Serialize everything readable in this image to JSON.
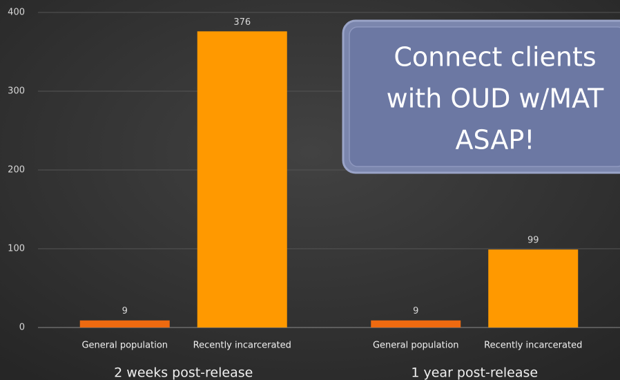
{
  "chart_data": {
    "type": "bar",
    "categories": [
      "2 weeks post-release",
      "1 year post-release"
    ],
    "series": [
      {
        "name": "General population",
        "color": "#ee6a10",
        "values": [
          9,
          9
        ]
      },
      {
        "name": "Recently incarcerated",
        "color": "#ff9900",
        "values": [
          376,
          99
        ]
      }
    ],
    "ylim": [
      0,
      400
    ],
    "yticks": [
      0,
      100,
      200,
      300,
      400
    ],
    "grid": true,
    "annotation": [
      "Connect clients",
      "with OUD w/MAT",
      "ASAP!"
    ]
  }
}
